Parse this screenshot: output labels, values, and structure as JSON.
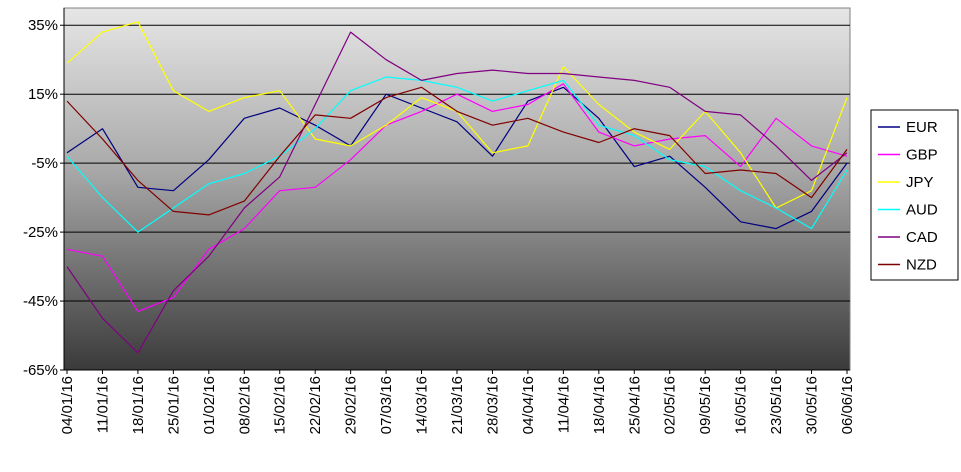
{
  "chart_data": {
    "type": "line",
    "title": "",
    "xlabel": "",
    "ylabel": "",
    "y_unit": "%",
    "ylim": [
      -65,
      40
    ],
    "y_ticks": [
      35,
      15,
      -5,
      -25,
      -45,
      -65
    ],
    "y_tick_labels": [
      "35%",
      "15%",
      "-5%",
      "-25%",
      "-45%",
      "-65%"
    ],
    "x_tick_labels": [
      "04/01/16",
      "11/01/16",
      "18/01/16",
      "25/01/16",
      "01/02/16",
      "08/02/16",
      "15/02/16",
      "22/02/16",
      "29/02/16",
      "07/03/16",
      "14/03/16",
      "21/03/16",
      "28/03/16",
      "04/04/16",
      "11/04/16",
      "18/04/16",
      "25/04/16",
      "02/05/16",
      "09/05/16",
      "16/05/16",
      "23/05/16",
      "30/05/16",
      "06/06/16"
    ],
    "x": [
      "04/01/16",
      "11/01/16",
      "18/01/16",
      "25/01/16",
      "01/02/16",
      "08/02/16",
      "15/02/16",
      "22/02/16",
      "29/02/16",
      "07/03/16",
      "14/03/16",
      "21/03/16",
      "28/03/16",
      "04/04/16",
      "11/04/16",
      "18/04/16",
      "25/04/16",
      "02/05/16",
      "09/05/16",
      "16/05/16",
      "23/05/16",
      "30/05/16",
      "06/06/16"
    ],
    "grid": "horizontal",
    "legend_position": "right",
    "background": "gradient light-grey top to dark-grey bottom",
    "series": [
      {
        "name": "EUR",
        "color": "#000080",
        "values": [
          -2,
          5,
          -12,
          -13,
          -4,
          8,
          11,
          6,
          0,
          15,
          11,
          7,
          -3,
          13,
          17,
          8,
          -6,
          -3,
          -12,
          -22,
          -24,
          -19,
          -5
        ]
      },
      {
        "name": "GBP",
        "color": "#ff00ff",
        "values": [
          -30,
          -32,
          -48,
          -44,
          -30,
          -24,
          -13,
          -12,
          -4,
          6,
          10,
          15,
          10,
          12,
          18,
          4,
          0,
          2,
          3,
          -6,
          8,
          0,
          -3
        ]
      },
      {
        "name": "JPY",
        "color": "#ffff00",
        "values": [
          24,
          33,
          36,
          16,
          10,
          14,
          16,
          2,
          0,
          6,
          14,
          10,
          -2,
          0,
          23,
          12,
          4,
          -1,
          10,
          -2,
          -18,
          -13,
          14
        ]
      },
      {
        "name": "AUD",
        "color": "#00ffff",
        "values": [
          -3,
          -15,
          -25,
          -18,
          -11,
          -8,
          -3,
          5,
          16,
          20,
          19,
          17,
          13,
          16,
          19,
          6,
          3,
          -4,
          -6,
          -13,
          -18,
          -24,
          -7
        ]
      },
      {
        "name": "CAD",
        "color": "#800080",
        "values": [
          -35,
          -50,
          -60,
          -42,
          -32,
          -18,
          -9,
          12,
          33,
          25,
          19,
          21,
          22,
          21,
          21,
          20,
          19,
          17,
          10,
          9,
          0,
          -10,
          -2
        ]
      },
      {
        "name": "NZD",
        "color": "#800000",
        "values": [
          13,
          2,
          -10,
          -19,
          -20,
          -16,
          -3,
          9,
          8,
          14,
          17,
          10,
          6,
          8,
          4,
          1,
          5,
          3,
          -8,
          -7,
          -8,
          -15,
          -1
        ]
      }
    ]
  }
}
